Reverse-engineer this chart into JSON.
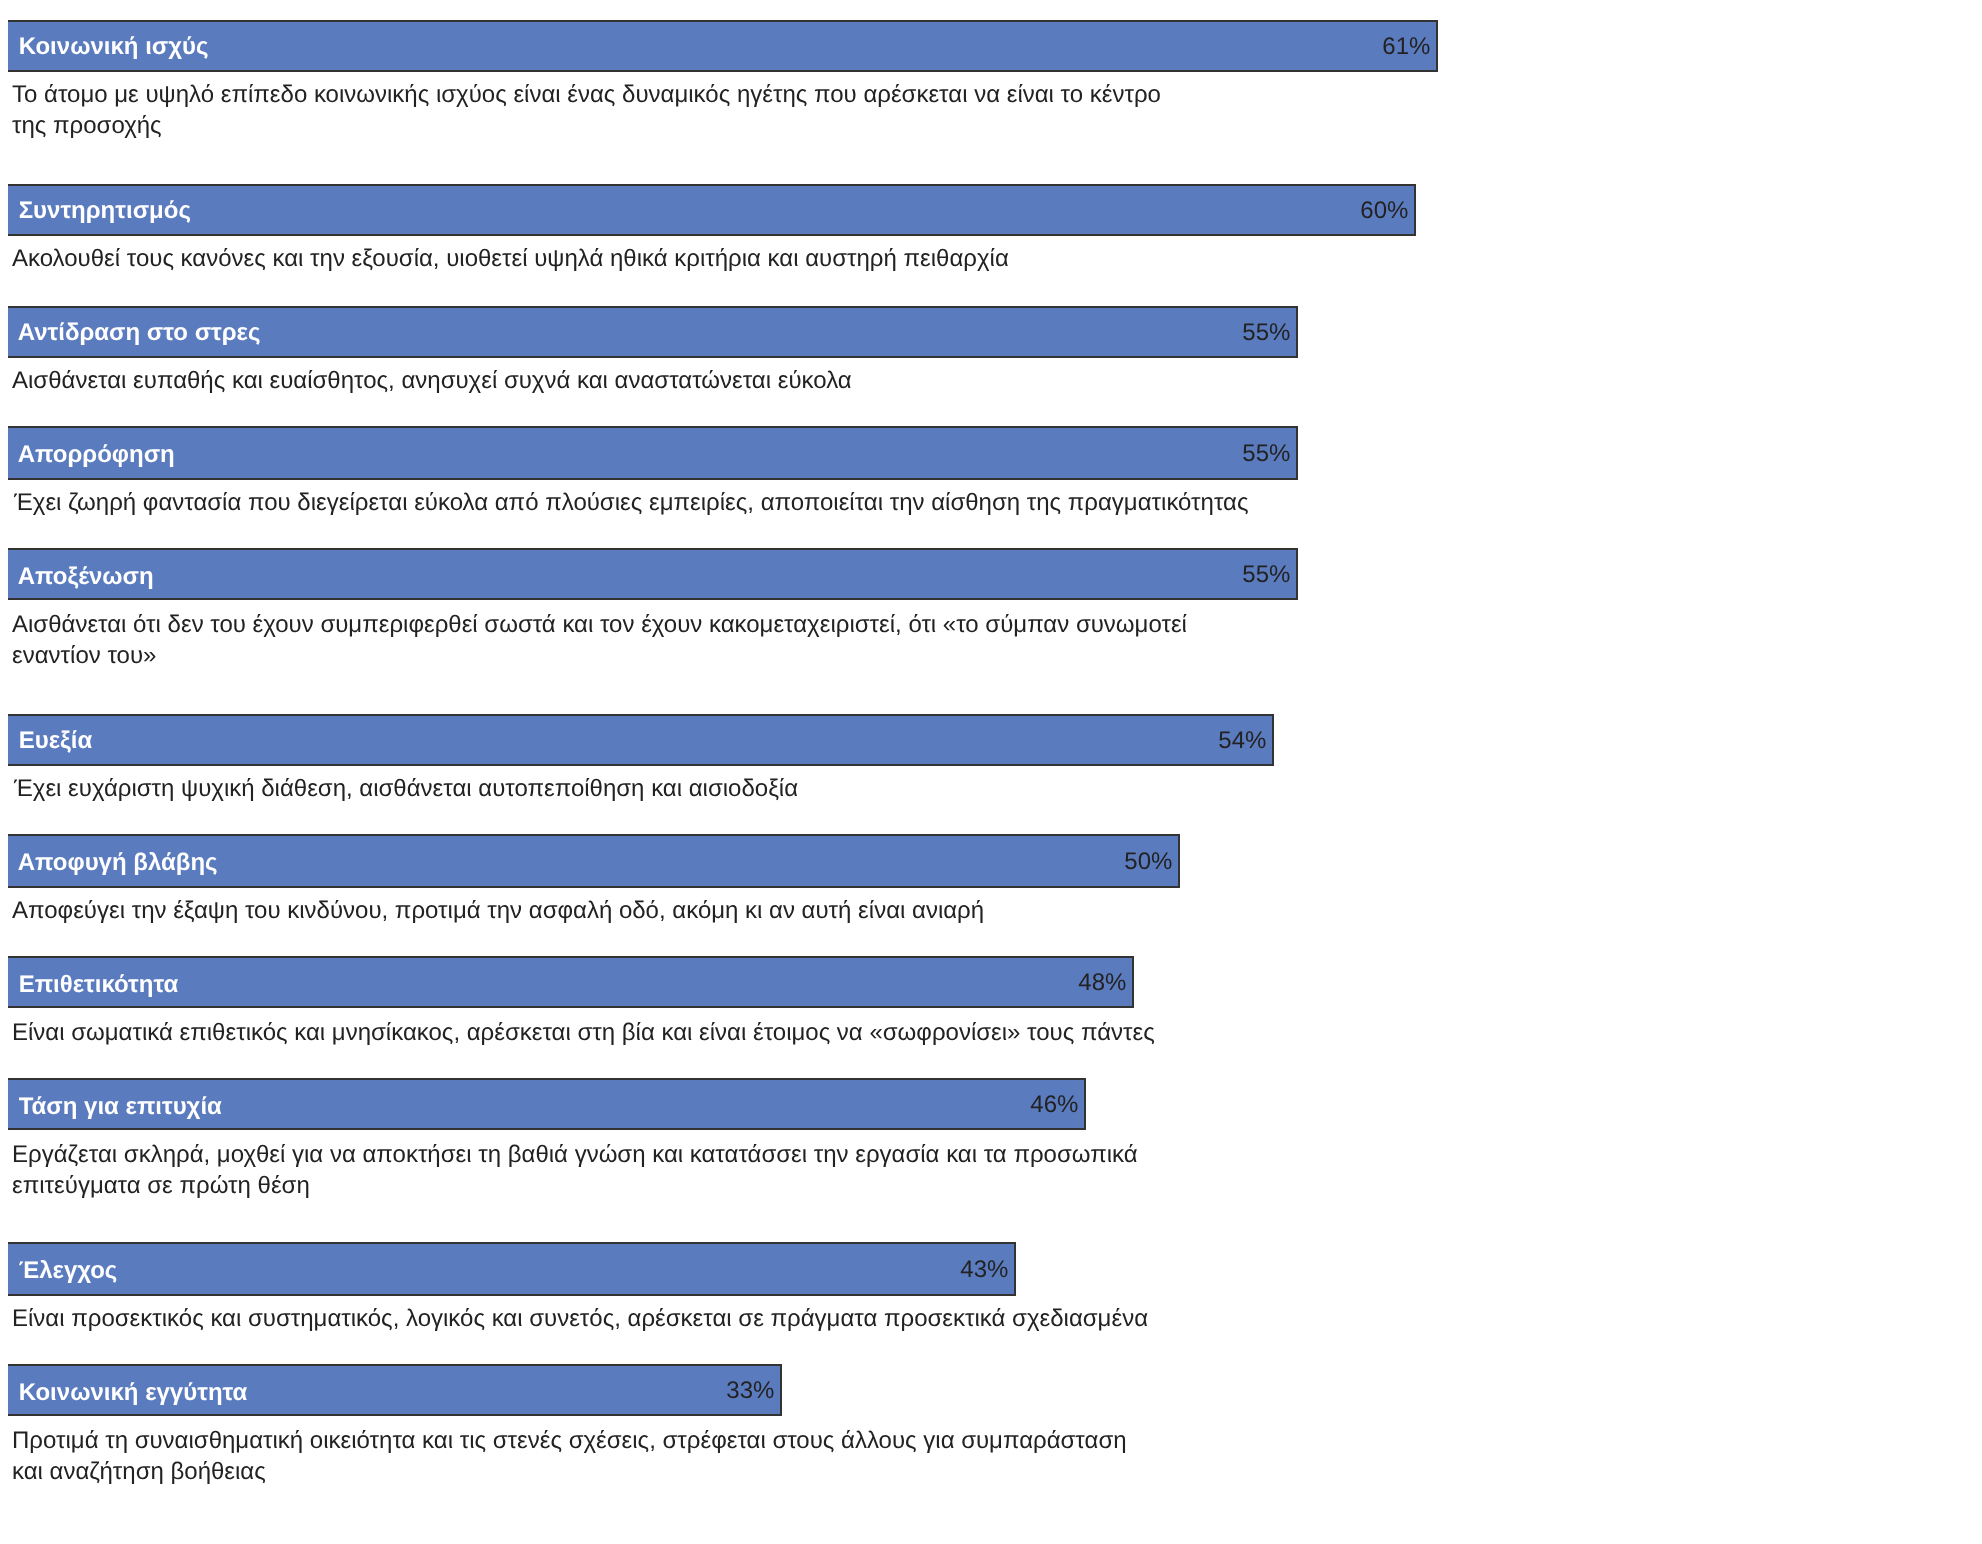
{
  "chart_data": {
    "type": "bar",
    "orientation": "horizontal",
    "color": "#5b7bbf",
    "xlim": [
      0,
      84
    ],
    "tick_labels": false,
    "categories": [
      "Κοινωνική ισχύς",
      "Συντηρητισμός",
      "Αντίδραση στο στρες",
      "Απορρόφηση",
      "Αποξένωση",
      "Ευεξία",
      "Αποφυγή βλάβης",
      "Επιθετικότητα",
      "Τάση για επιτυχία",
      "Έλεγχος",
      "Κοινωνική εγγύτητα"
    ],
    "values": [
      61,
      60,
      55,
      55,
      55,
      54,
      50,
      48,
      46,
      43,
      33
    ],
    "value_labels": [
      "61%",
      "60%",
      "55%",
      "55%",
      "55%",
      "54%",
      "50%",
      "48%",
      "46%",
      "43%",
      "33%"
    ],
    "annotations": [
      "Το άτομο με υψηλό επίπεδο κοινωνικής ισχύος είναι ένας δυναμικός ηγέτης που αρέσκεται να είναι το κέντρο\nτης προσοχής",
      "Ακολουθεί τους κανόνες και την εξουσία, υιοθετεί υψηλά ηθικά κριτήρια και αυστηρή πειθαρχία",
      "Αισθάνεται ευπαθής και ευαίσθητος, ανησυχεί συχνά και αναστατώνεται εύκολα",
      "Έχει ζωηρή φαντασία που διεγείρεται εύκολα από πλούσιες εμπειρίες, αποποιείται την αίσθηση της πραγματικότητας",
      "Αισθάνεται ότι δεν του έχουν συμπεριφερθεί σωστά και τον έχουν κακομεταχειριστεί, ότι «το σύμπαν συνωμοτεί\nεναντίον του»",
      "Έχει ευχάριστη ψυχική διάθεση, αισθάνεται αυτοπεποίθηση και αισιοδοξία",
      "Αποφεύγει την έξαψη του κινδύνου, προτιμά την ασφαλή οδό, ακόμη κι αν αυτή είναι ανιαρή",
      "Είναι σωματικά επιθετικός και μνησίκακος, αρέσκεται στη βία και είναι έτοιμος να «σωφρονίσει» τους πάντες",
      "Εργάζεται σκληρά, μοχθεί για να αποκτήσει τη βαθιά γνώση και κατατάσσει την εργασία και τα προσωπικά\nεπιτεύγματα σε πρώτη θέση",
      "Είναι προσεκτικός και συστηματικός, λογικός και συνετός, αρέσκεται σε πράγματα προσεκτικά σχεδιασμένα",
      "Προτιμά τη συναισθηματική οικειότητα και τις στενές σχέσεις, στρέφεται στους άλλους για συμπαράσταση\nκαι αναζήτηση βοήθειας"
    ]
  }
}
